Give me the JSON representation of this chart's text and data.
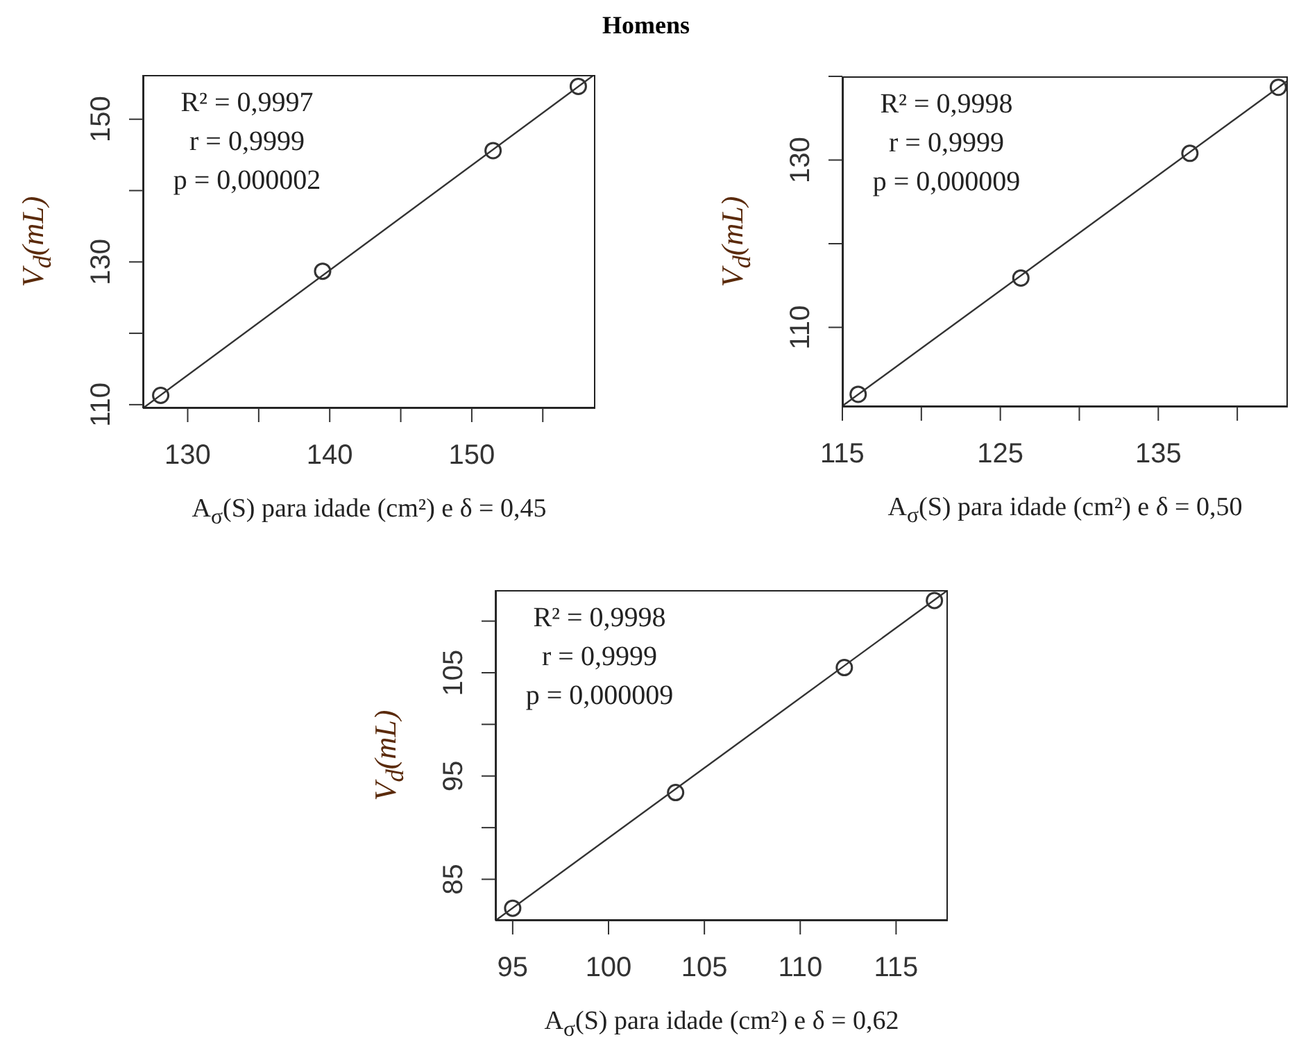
{
  "chart_data": [
    {
      "type": "scatter",
      "title": "Homens",
      "xlabel": "A$_{σ}$(S) para idade (cm²) e δ = 0,45",
      "ylabel": "V$_{d}$(mL)",
      "xlim": [
        126.85,
        158.7
      ],
      "xticks": [
        130,
        {
          "value": 135,
          "label": null
        },
        140,
        {
          "value": 145,
          "label": null
        },
        150,
        {
          "value": 155,
          "label": null
        }
      ],
      "ylim": [
        109.5,
        156.2
      ],
      "yticks": [
        110,
        {
          "value": 120,
          "label": null
        },
        130,
        {
          "value": 140,
          "label": null
        },
        150
      ],
      "annotations": [
        "R² = 0,9997",
        "r = 0,9999",
        "p = 0,000002"
      ],
      "series": [
        {
          "type": "scatter",
          "marker": "circle",
          "color": "#333333",
          "x": [
            128.1,
            139.5,
            151.5,
            157.5
          ],
          "values": [
            111.3,
            128.7,
            145.6,
            154.6
          ]
        },
        {
          "type": "line",
          "color": "#333333",
          "x": [
            126.85,
            158.6
          ],
          "values": [
            109.5,
            156.2
          ]
        }
      ]
    },
    {
      "type": "scatter",
      "xlabel": "A$_{σ}$(S) para idade (cm²) e δ = 0,50",
      "ylabel": "V$_{d}$(mL)",
      "xlim": [
        115,
        143.2
      ],
      "xticks": [
        115,
        {
          "value": 120,
          "label": null
        },
        125,
        {
          "value": 130,
          "label": null
        },
        135,
        {
          "value": 140,
          "label": null
        }
      ],
      "ylim": [
        100.5,
        140
      ],
      "yticks": [
        110,
        {
          "value": 120,
          "label": null
        },
        130,
        {
          "value": 140,
          "label": null
        }
      ],
      "annotations": [
        "R² = 0,9998",
        "r = 0,9999",
        "p = 0,000009"
      ],
      "series": [
        {
          "type": "scatter",
          "marker": "circle",
          "color": "#333333",
          "x": [
            116.0,
            126.3,
            137.0,
            142.6
          ],
          "values": [
            102.0,
            115.9,
            130.8,
            138.7
          ]
        },
        {
          "type": "line",
          "color": "#333333",
          "x": [
            115,
            143.2
          ],
          "values": [
            100.6,
            139.5
          ]
        }
      ]
    },
    {
      "type": "scatter",
      "xlabel": "A$_{σ}$(S) para idade (cm²) e δ = 0,62",
      "ylabel": "V$_{d}$(mL)",
      "xlim": [
        94.1,
        117.7
      ],
      "xticks": [
        95,
        100,
        105,
        110,
        115
      ],
      "ylim": [
        81,
        113
      ],
      "yticks": [
        85,
        {
          "value": 90,
          "label": null
        },
        95,
        {
          "value": 100,
          "label": null
        },
        105,
        {
          "value": 110,
          "label": null
        }
      ],
      "annotations": [
        "R² = 0,9998",
        "r = 0,9999",
        "p = 0,000009"
      ],
      "series": [
        {
          "type": "scatter",
          "marker": "circle",
          "color": "#333333",
          "x": [
            95.0,
            103.5,
            112.3,
            117.0
          ],
          "values": [
            82.2,
            93.4,
            105.5,
            112.0
          ]
        },
        {
          "type": "line",
          "color": "#333333",
          "x": [
            94.1,
            117.7
          ],
          "values": [
            81.0,
            113.0
          ]
        }
      ]
    }
  ]
}
